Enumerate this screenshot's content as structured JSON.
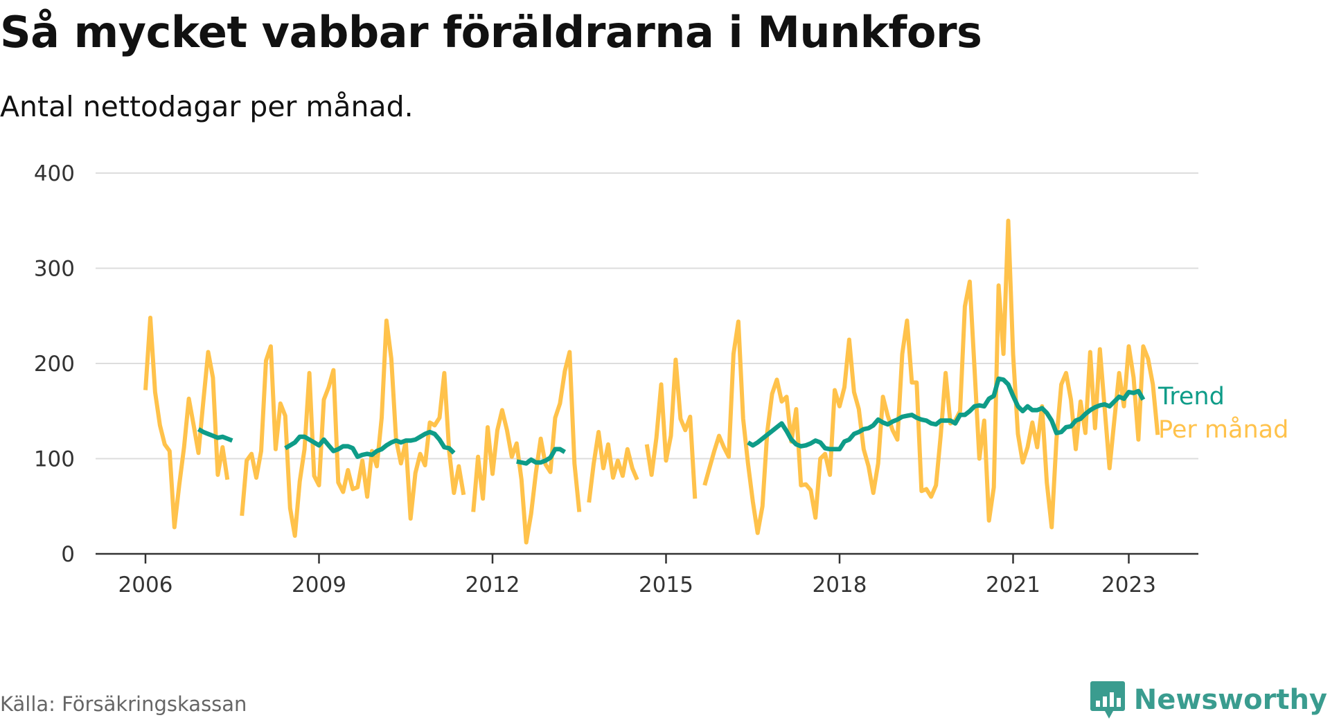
{
  "header": {
    "title": "Så mycket vabbar föräldrarna i Munkfors",
    "subtitle": "Antal nettodagar per månad."
  },
  "footer": {
    "source": "Källa: Försäkringskassan",
    "brand": "Newsworthy",
    "brand_icon": "bar-chart-speech-icon"
  },
  "colors": {
    "monthly": "#ffc24b",
    "trend": "#0e9c88",
    "grid": "#dddddd",
    "axis": "#333333",
    "brand": "#3a9c8f"
  },
  "chart_data": {
    "type": "line",
    "title": "Så mycket vabbar föräldrarna i Munkfors",
    "subtitle": "Antal nettodagar per månad.",
    "xlabel": "",
    "ylabel": "",
    "ylim": [
      0,
      400
    ],
    "yticks": [
      "0",
      "100",
      "200",
      "300",
      "400"
    ],
    "xticks": [
      "2006",
      "2009",
      "2012",
      "2015",
      "2018",
      "2021",
      "2023"
    ],
    "grid": true,
    "legend": "right-end-labels",
    "series": [
      {
        "name": "Per månad",
        "segments": [
          {
            "start": "2006-01",
            "values": [
              172,
              248,
              170,
              135,
              115,
              108,
              28,
              72,
              112,
              163,
              135,
              106,
              160,
              212,
              185,
              83,
              112,
              78
            ]
          },
          {
            "start": "2007-09",
            "values": [
              40,
              98,
              105,
              80,
              108,
              203,
              218,
              110,
              158,
              145,
              48,
              19,
              76,
              110,
              190,
              82,
              72,
              162,
              175,
              193,
              75,
              65,
              88,
              68,
              70,
              98,
              60,
              108,
              92,
              143,
              245,
              205,
              120,
              95,
              118,
              37,
              85,
              105,
              93,
              138,
              135,
              143,
              190,
              108,
              64,
              92,
              62
            ]
          },
          {
            "start": "2011-09",
            "values": [
              44,
              102,
              58,
              133,
              84,
              130,
              151,
              130,
              102,
              116,
              78,
              12,
              42,
              85,
              121,
              94,
              86,
              143,
              158,
              192,
              212,
              95,
              44
            ]
          },
          {
            "start": "2013-09",
            "values": [
              54,
              95,
              128,
              90,
              115,
              80,
              98,
              82,
              110,
              90,
              78
            ]
          },
          {
            "start": "2014-09",
            "values": [
              115,
              83,
              122,
              178,
              98,
              124,
              204,
              142,
              130,
              144,
              58
            ]
          },
          {
            "start": "2015-09",
            "values": [
              72,
              90,
              108,
              124,
              112,
              102,
              210,
              244,
              142,
              95,
              55,
              22,
              50,
              128,
              168,
              183,
              160,
              165,
              118,
              152,
              72,
              73,
              67,
              38,
              100,
              105,
              83,
              172,
              155,
              175,
              225,
              170,
              152,
              110,
              92,
              64,
              95,
              165,
              145,
              130,
              120,
              210,
              245,
              180,
              180,
              66,
              68,
              60,
              72,
              125,
              190,
              137,
              140,
              150,
              260,
              286,
              195,
              100,
              140,
              35,
              70,
              282,
              210,
              350,
              210,
              126,
              96,
              112,
              138,
              112,
              155,
              75,
              28,
              120,
              178,
              190,
              162,
              110,
              160,
              127,
              212,
              132,
              215,
              153,
              90,
              140,
              190,
              155,
              218,
              185,
              120,
              218,
              205,
              178,
              125
            ]
          }
        ]
      },
      {
        "name": "Trend",
        "segments": [
          {
            "start": "2006-12",
            "values": [
              131,
              128,
              126,
              124,
              122,
              123,
              121,
              119
            ]
          },
          {
            "start": "2008-06",
            "values": [
              111,
              114,
              117,
              123,
              123,
              120,
              117,
              114,
              120,
              114,
              108,
              110,
              113,
              113,
              111,
              102,
              104,
              105,
              104,
              108,
              110,
              114,
              117,
              119,
              117,
              119,
              119,
              120,
              123,
              126,
              128,
              126,
              120,
              112,
              111,
              106
            ]
          },
          {
            "start": "2012-06",
            "values": [
              97,
              96,
              95,
              99,
              96,
              96,
              98,
              101,
              110,
              110,
              107
            ]
          },
          {
            "start": "2016-06",
            "values": [
              117,
              114,
              117,
              121,
              125,
              129,
              133,
              137,
              129,
              120,
              115,
              113,
              114,
              116,
              119,
              117,
              111,
              110,
              110,
              110,
              118,
              120,
              126,
              128,
              131,
              132,
              135,
              141,
              138,
              136,
              139,
              141,
              144,
              145,
              146,
              143,
              141,
              140,
              137,
              136,
              140,
              140,
              140,
              137,
              146,
              146,
              150,
              155,
              156,
              155,
              163,
              166,
              184,
              183,
              178,
              166,
              155,
              150,
              155,
              151,
              151,
              153,
              148,
              140,
              127,
              128,
              133,
              134,
              140,
              142,
              147,
              151,
              154,
              156,
              157,
              155,
              160,
              165,
              163,
              170,
              169,
              171,
              162
            ]
          }
        ]
      }
    ]
  }
}
